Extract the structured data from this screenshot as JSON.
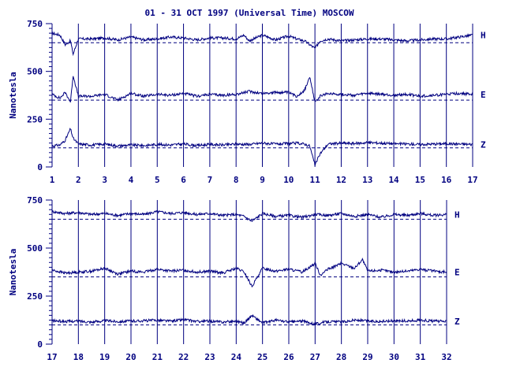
{
  "chart_data": [
    {
      "type": "line",
      "title": "01 - 31 OCT 1997 (Universal Time) MOSCOW",
      "ylabel": "Nanotesla",
      "ylim": [
        0,
        750
      ],
      "xlim": [
        1,
        17
      ],
      "yticks": [
        "0",
        "250",
        "500",
        "750"
      ],
      "xticks": [
        "1",
        "2",
        "3",
        "4",
        "5",
        "6",
        "7",
        "8",
        "9",
        "10",
        "11",
        "12",
        "13",
        "14",
        "15",
        "16",
        "17"
      ],
      "grid": "vertical lines at each day",
      "series": [
        {
          "name": "H",
          "baseline": 650,
          "x": [
            1,
            1.3,
            1.5,
            1.7,
            1.8,
            2,
            2.5,
            3,
            3.5,
            4,
            4.5,
            5,
            5.5,
            6,
            6.5,
            7,
            7.5,
            8,
            8.3,
            8.5,
            9,
            9.5,
            10,
            10.3,
            10.6,
            10.8,
            11,
            11.2,
            11.5,
            12,
            12.5,
            13,
            13.5,
            14,
            14.5,
            15,
            15.5,
            16,
            16.5,
            17
          ],
          "values": [
            700,
            690,
            640,
            660,
            590,
            670,
            670,
            675,
            665,
            680,
            665,
            670,
            680,
            675,
            665,
            675,
            675,
            670,
            690,
            660,
            690,
            665,
            685,
            670,
            660,
            640,
            620,
            660,
            670,
            660,
            665,
            670,
            670,
            665,
            660,
            665,
            670,
            670,
            680,
            690
          ]
        },
        {
          "name": "E",
          "baseline": 350,
          "x": [
            1,
            1.3,
            1.5,
            1.7,
            1.8,
            2,
            2.5,
            3,
            3.5,
            4,
            4.5,
            5,
            5.5,
            6,
            6.5,
            7,
            7.5,
            8,
            8.5,
            9,
            9.5,
            10,
            10.3,
            10.6,
            10.8,
            11,
            11.2,
            11.5,
            12,
            12.5,
            13,
            13.5,
            14,
            14.5,
            15,
            15.5,
            16,
            16.5,
            17
          ],
          "values": [
            380,
            360,
            390,
            340,
            480,
            370,
            370,
            380,
            350,
            385,
            370,
            380,
            375,
            385,
            370,
            380,
            375,
            380,
            395,
            385,
            390,
            390,
            370,
            400,
            470,
            340,
            370,
            385,
            380,
            375,
            385,
            380,
            375,
            380,
            370,
            375,
            380,
            385,
            380
          ]
        },
        {
          "name": "Z",
          "baseline": 100,
          "x": [
            1,
            1.3,
            1.5,
            1.7,
            1.8,
            2,
            2.5,
            3,
            3.5,
            4,
            4.5,
            5,
            5.5,
            6,
            6.5,
            7,
            7.5,
            8,
            8.5,
            9,
            9.5,
            10,
            10.3,
            10.6,
            10.8,
            11,
            11.2,
            11.5,
            12,
            12.5,
            13,
            13.5,
            14,
            14.5,
            15,
            15.5,
            16,
            16.5,
            17
          ],
          "values": [
            110,
            115,
            140,
            200,
            150,
            120,
            115,
            120,
            110,
            115,
            112,
            118,
            115,
            120,
            112,
            118,
            115,
            120,
            118,
            125,
            120,
            122,
            125,
            120,
            110,
            10,
            70,
            120,
            125,
            122,
            128,
            125,
            122,
            120,
            118,
            120,
            122,
            120,
            118
          ]
        }
      ]
    },
    {
      "type": "line",
      "title": "",
      "ylabel": "Nanotesla",
      "ylim": [
        0,
        750
      ],
      "xlim": [
        17,
        32
      ],
      "yticks": [
        "0",
        "250",
        "500",
        "750"
      ],
      "xticks": [
        "17",
        "18",
        "19",
        "20",
        "21",
        "22",
        "23",
        "24",
        "25",
        "26",
        "27",
        "28",
        "29",
        "30",
        "31",
        "32"
      ],
      "grid": "vertical lines at each day",
      "series": [
        {
          "name": "H",
          "baseline": 650,
          "x": [
            17,
            17.5,
            18,
            18.5,
            19,
            19.5,
            20,
            20.5,
            21,
            21.5,
            22,
            22.5,
            23,
            23.5,
            24,
            24.3,
            24.6,
            25,
            25.5,
            26,
            26.5,
            27,
            27.5,
            28,
            28.5,
            29,
            29.5,
            30,
            30.5,
            31,
            31.5,
            32
          ],
          "values": [
            690,
            680,
            685,
            675,
            680,
            670,
            680,
            675,
            690,
            680,
            685,
            675,
            680,
            670,
            675,
            665,
            640,
            680,
            665,
            670,
            660,
            675,
            670,
            680,
            665,
            675,
            660,
            675,
            670,
            680,
            670,
            675
          ]
        },
        {
          "name": "E",
          "baseline": 350,
          "x": [
            17,
            17.5,
            18,
            18.5,
            19,
            19.5,
            20,
            20.5,
            21,
            21.5,
            22,
            22.5,
            23,
            23.5,
            24,
            24.3,
            24.6,
            25,
            25.5,
            26,
            26.5,
            27,
            27.2,
            27.5,
            28,
            28.5,
            28.8,
            29,
            29.5,
            30,
            30.5,
            31,
            31.5,
            32
          ],
          "values": [
            385,
            370,
            375,
            380,
            395,
            365,
            380,
            375,
            390,
            380,
            385,
            375,
            380,
            370,
            395,
            375,
            300,
            395,
            380,
            390,
            375,
            420,
            360,
            390,
            420,
            395,
            440,
            380,
            385,
            375,
            380,
            390,
            380,
            375
          ]
        },
        {
          "name": "Z",
          "baseline": 100,
          "x": [
            17,
            17.5,
            18,
            18.5,
            19,
            19.5,
            20,
            20.5,
            21,
            21.5,
            22,
            22.5,
            23,
            23.5,
            24,
            24.3,
            24.6,
            25,
            25.5,
            26,
            26.5,
            27,
            27.5,
            28,
            28.5,
            29,
            29.5,
            30,
            30.5,
            31,
            31.5,
            32
          ],
          "values": [
            122,
            118,
            120,
            115,
            122,
            118,
            120,
            122,
            125,
            120,
            128,
            118,
            120,
            115,
            120,
            110,
            150,
            110,
            125,
            115,
            120,
            105,
            118,
            115,
            125,
            120,
            118,
            122,
            120,
            125,
            120,
            118
          ]
        }
      ]
    }
  ]
}
